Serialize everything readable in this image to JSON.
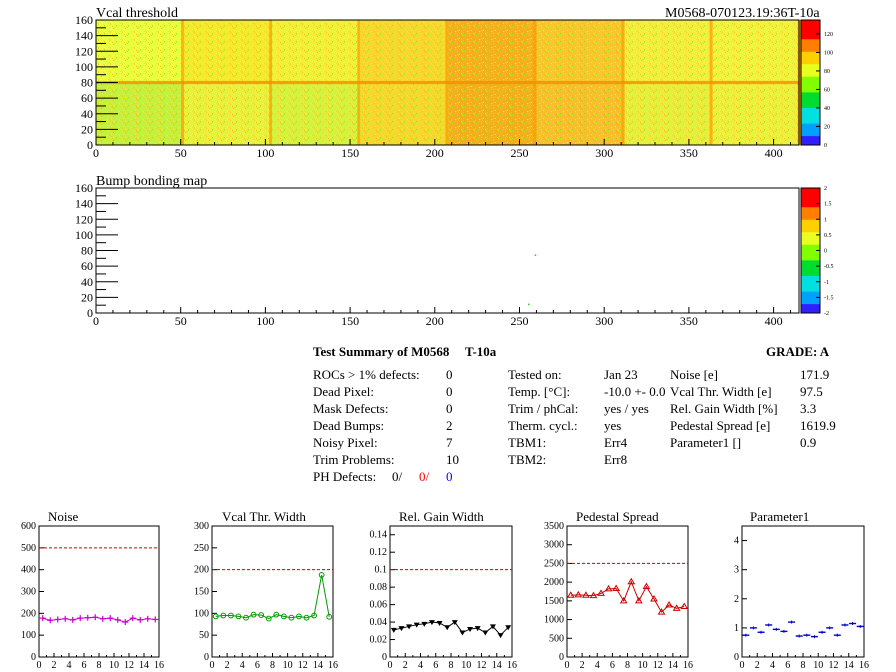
{
  "maps": [
    {
      "title": "Vcal threshold",
      "run_label": "M0568-070123.19:36T-10a",
      "x_ticks": [
        0,
        50,
        100,
        150,
        200,
        250,
        300,
        350,
        400
      ],
      "y_ticks": [
        0,
        20,
        40,
        60,
        80,
        100,
        120,
        140,
        160
      ],
      "xlim": [
        0,
        415
      ],
      "ylim": [
        0,
        160
      ],
      "palette_ticks": [
        "0",
        "20",
        "40",
        "60",
        "80",
        "100",
        "120"
      ],
      "zlim": [
        0,
        135
      ]
    },
    {
      "title": "Bump bonding map",
      "x_ticks": [
        0,
        50,
        100,
        150,
        200,
        250,
        300,
        350,
        400
      ],
      "y_ticks": [
        0,
        20,
        40,
        60,
        80,
        100,
        120,
        140,
        160
      ],
      "xlim": [
        0,
        415
      ],
      "ylim": [
        0,
        160
      ],
      "palette_ticks": [
        "-2",
        "-1.5",
        "-1",
        "-0.5",
        "0",
        "0.5",
        "1",
        "1.5",
        "2"
      ],
      "zlim": [
        -2,
        2
      ],
      "points": [
        [
          259,
          75
        ],
        [
          255,
          12
        ]
      ]
    }
  ],
  "summary": {
    "title": "Test Summary of M0568",
    "temp_tag": "T-10a",
    "grade_label": "GRADE:  A",
    "defects": [
      {
        "label": "ROCs > 1% defects:",
        "value": "0"
      },
      {
        "label": "Dead Pixel:",
        "value": "0"
      },
      {
        "label": "Mask Defects:",
        "value": "0"
      },
      {
        "label": "Dead Bumps:",
        "value": "2"
      },
      {
        "label": "Noisy Pixel:",
        "value": "7"
      },
      {
        "label": "Trim Problems:",
        "value": "10"
      }
    ],
    "ph_defects": {
      "label": "PH Defects:",
      "v1": "0/",
      "v2": "0/",
      "v3": "0",
      "c2": "#ff0000",
      "c3": "#0000ff"
    },
    "conditions": [
      {
        "label": "Tested on:",
        "value": "Jan 23"
      },
      {
        "label": "Temp. [°C]:",
        "value": "-10.0 +- 0.0"
      },
      {
        "label": "Trim / phCal:",
        "value": "yes / yes"
      },
      {
        "label": "Therm. cycl.:",
        "value": "yes"
      },
      {
        "label": "TBM1:",
        "value": "Err4"
      },
      {
        "label": "TBM2:",
        "value": "Err8"
      }
    ],
    "results": [
      {
        "label": "Noise [e]",
        "value": "171.9"
      },
      {
        "label": "Vcal Thr. Width [e]",
        "value": "97.5"
      },
      {
        "label": "Rel. Gain Width [%]",
        "value": "3.3"
      },
      {
        "label": "Pedestal Spread [e]",
        "value": "1619.9"
      },
      {
        "label": "Parameter1 []",
        "value": "0.9"
      }
    ]
  },
  "chart_data": [
    {
      "type": "line",
      "title": "Noise",
      "color": "#cc00cc",
      "marker": "plus",
      "x": [
        0,
        1,
        2,
        3,
        4,
        5,
        6,
        7,
        8,
        9,
        10,
        11,
        12,
        13,
        14,
        15
      ],
      "values": [
        178,
        168,
        172,
        175,
        170,
        178,
        180,
        182,
        175,
        178,
        170,
        160,
        178,
        170,
        175,
        172
      ],
      "ylim": [
        0,
        600
      ],
      "yticks": [
        0,
        100,
        200,
        300,
        400,
        500,
        600
      ],
      "ref": 500,
      "xticks": [
        0,
        2,
        4,
        6,
        8,
        10,
        12,
        14,
        16
      ]
    },
    {
      "type": "line",
      "title": "Vcal Thr. Width",
      "color": "#009900",
      "marker": "circle",
      "x": [
        0,
        1,
        2,
        3,
        4,
        5,
        6,
        7,
        8,
        9,
        10,
        11,
        12,
        13,
        14,
        15
      ],
      "values": [
        93,
        95,
        95,
        93,
        90,
        97,
        96,
        88,
        97,
        93,
        90,
        93,
        90,
        95,
        188,
        92
      ],
      "ylim": [
        0,
        300
      ],
      "yticks": [
        0,
        50,
        100,
        150,
        200,
        250,
        300
      ],
      "ref": 200,
      "xticks": [
        0,
        2,
        4,
        6,
        8,
        10,
        12,
        14,
        16
      ]
    },
    {
      "type": "line",
      "title": "Rel. Gain Width",
      "color": "#000000",
      "marker": "tri-down",
      "x": [
        0,
        1,
        2,
        3,
        4,
        5,
        6,
        7,
        8,
        9,
        10,
        11,
        12,
        13,
        14,
        15
      ],
      "values": [
        0.031,
        0.033,
        0.035,
        0.037,
        0.038,
        0.04,
        0.039,
        0.034,
        0.04,
        0.028,
        0.032,
        0.033,
        0.028,
        0.035,
        0.025,
        0.034
      ],
      "ylim": [
        0,
        0.15
      ],
      "yticks": [
        "0",
        "0.02",
        "0.04",
        "0.06",
        "0.08",
        "0.1",
        "0.12",
        "0.14"
      ],
      "ref": 0.1,
      "xticks": [
        0,
        2,
        4,
        6,
        8,
        10,
        12,
        14,
        16
      ]
    },
    {
      "type": "line",
      "title": "Pedestal Spread",
      "color": "#cc0000",
      "marker": "tri-up",
      "x": [
        0,
        1,
        2,
        3,
        4,
        5,
        6,
        7,
        8,
        9,
        10,
        11,
        12,
        13,
        14,
        15
      ],
      "values": [
        1650,
        1660,
        1650,
        1640,
        1700,
        1820,
        1830,
        1500,
        2010,
        1500,
        1880,
        1550,
        1200,
        1390,
        1300,
        1350
      ],
      "ylim": [
        0,
        3500
      ],
      "yticks": [
        0,
        500,
        1000,
        1500,
        2000,
        2500,
        3000,
        3500
      ],
      "ref": 2500,
      "xticks": [
        0,
        2,
        4,
        6,
        8,
        10,
        12,
        14,
        16
      ]
    },
    {
      "type": "scatter",
      "title": "Parameter1",
      "color": "#0000cc",
      "marker": "hbar",
      "x": [
        0,
        1,
        2,
        3,
        4,
        5,
        6,
        7,
        8,
        9,
        10,
        11,
        12,
        13,
        14,
        15
      ],
      "values": [
        0.75,
        1.0,
        0.85,
        1.1,
        0.95,
        0.88,
        1.2,
        0.72,
        0.75,
        0.7,
        0.85,
        1.0,
        0.75,
        1.1,
        1.15,
        1.05
      ],
      "ylim": [
        0,
        4.5
      ],
      "yticks": [
        0,
        1,
        2,
        3,
        4
      ],
      "xticks": [
        0,
        2,
        4,
        6,
        8,
        10,
        12,
        14,
        16
      ]
    }
  ]
}
